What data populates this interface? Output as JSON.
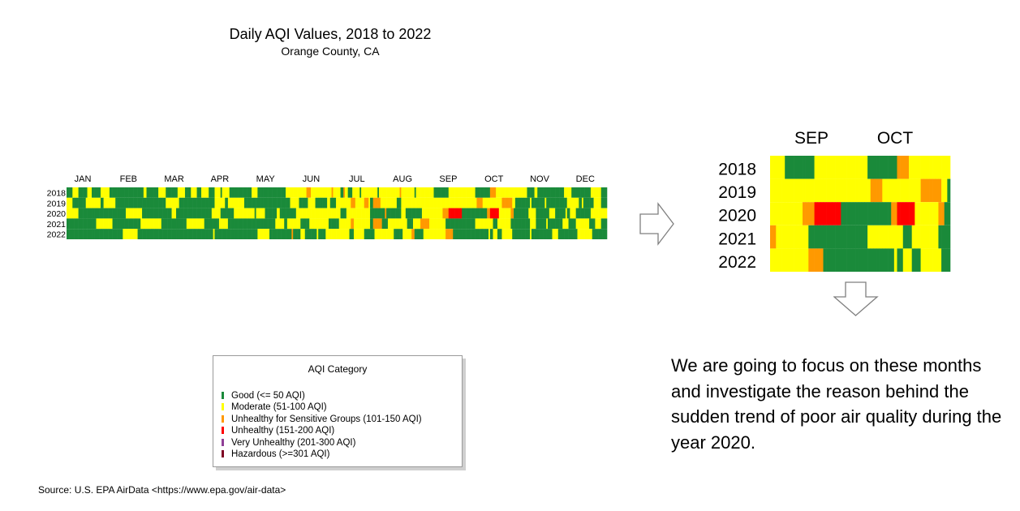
{
  "title": "Daily AQI Values, 2018 to 2022",
  "subtitle": "Orange County, CA",
  "chart_data": [
    {
      "type": "heatmap",
      "title": "Daily AQI Values, 2018 to 2022",
      "subtitle": "Orange County, CA",
      "x_ticks": [
        "JAN",
        "FEB",
        "MAR",
        "APR",
        "MAY",
        "JUN",
        "JUL",
        "AUG",
        "SEP",
        "OCT",
        "NOV",
        "DEC"
      ],
      "rows": [
        "2018",
        "2019",
        "2020",
        "2021",
        "2022"
      ],
      "x_range_days": [
        1,
        365
      ],
      "grid": false
    },
    {
      "type": "heatmap",
      "x_ticks": [
        "SEP",
        "OCT"
      ],
      "rows": [
        "2018",
        "2019",
        "2020",
        "2021",
        "2022"
      ],
      "x_range_days": [
        244,
        304
      ],
      "grid": false
    }
  ],
  "legend": {
    "title": "AQI Category",
    "items": [
      {
        "label": "Good (<= 50 AQI)",
        "color": "#1a8a3a"
      },
      {
        "label": "Moderate (51-100 AQI)",
        "color": "#ffff00"
      },
      {
        "label": "Unhealthy for Sensitive Groups (101-150 AQI)",
        "color": "#ff9900"
      },
      {
        "label": "Unhealthy (151-200 AQI)",
        "color": "#ff0000"
      },
      {
        "label": "Very Unhealthy (201-300 AQI)",
        "color": "#8f3f97"
      },
      {
        "label": "Hazardous (>=301 AQI)",
        "color": "#7e0023"
      }
    ]
  },
  "note": "We are going to focus on these months and investigate the reason behind the sudden trend of poor air quality during the year 2020.",
  "source": "Source: U.S. EPA AirData <https://www.epa.gov/air-data>"
}
